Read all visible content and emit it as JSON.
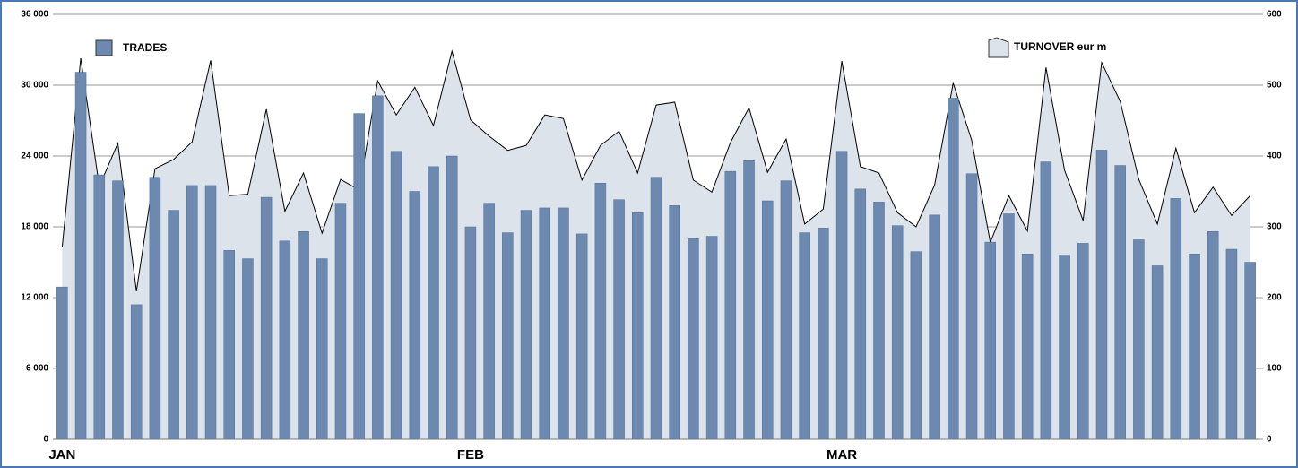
{
  "chart_data": {
    "type": "bar+area",
    "categories": [
      "JAN",
      null,
      null,
      null,
      null,
      null,
      null,
      null,
      null,
      null,
      null,
      null,
      null,
      null,
      null,
      null,
      null,
      null,
      null,
      null,
      null,
      null,
      "FEB",
      null,
      null,
      null,
      null,
      null,
      null,
      null,
      null,
      null,
      null,
      null,
      null,
      null,
      null,
      null,
      null,
      null,
      null,
      null,
      "MAR",
      null,
      null,
      null,
      null,
      null,
      null,
      null,
      null,
      null,
      null,
      null,
      null,
      null,
      null,
      null,
      null,
      null,
      null,
      null,
      null,
      null,
      null
    ],
    "series": [
      {
        "name": "TRADES",
        "type": "bar",
        "color": "#6d89af",
        "axis": "y",
        "values": [
          12900,
          31100,
          22400,
          21900,
          11400,
          22200,
          19400,
          21500,
          21500,
          16000,
          15300,
          20500,
          16800,
          17600,
          15300,
          20000,
          27600,
          29100,
          24400,
          21000,
          23100,
          24000,
          18000,
          20000,
          17500,
          19400,
          19600,
          19600,
          17400,
          21700,
          20300,
          19200,
          22200,
          19800,
          17000,
          17200,
          22700,
          23600,
          20200,
          21900,
          17500,
          17900,
          24400,
          21200,
          20100,
          18100,
          15900,
          19000,
          28900,
          22500,
          16700,
          19100,
          15700,
          23500,
          15600,
          16600,
          24500,
          23200,
          16900,
          14700,
          20400,
          15700,
          17600,
          16100,
          15000
        ]
      },
      {
        "name": "TURNOVER eur m",
        "type": "area",
        "color": "#dde3ea",
        "axis": "y2",
        "values": [
          271,
          538,
          357,
          418,
          209,
          382,
          395,
          420,
          535,
          344,
          346,
          466,
          322,
          376,
          291,
          367,
          352,
          506,
          458,
          497,
          443,
          548,
          451,
          428,
          408,
          415,
          458,
          453,
          366,
          415,
          435,
          376,
          472,
          476,
          366,
          349,
          419,
          468,
          377,
          424,
          304,
          325,
          534,
          385,
          376,
          320,
          300,
          359,
          503,
          422,
          278,
          344,
          294,
          525,
          380,
          309,
          532,
          477,
          367,
          304,
          411,
          320,
          356,
          316,
          344
        ]
      }
    ],
    "ylim": [
      0,
      36000
    ],
    "yticks": [
      0,
      {
        "value": 6000,
        "label": "6 000"
      },
      {
        "value": 12000,
        "label": "12 000"
      },
      {
        "value": 18000,
        "label": "18 000"
      },
      {
        "value": 24000,
        "label": "24 000"
      },
      {
        "value": 30000,
        "label": "30 000"
      },
      {
        "value": 36000,
        "label": "36 000"
      }
    ],
    "y2lim": [
      0,
      600
    ],
    "y2ticks": [
      0,
      100,
      200,
      300,
      400,
      500,
      600
    ],
    "grid": true
  }
}
